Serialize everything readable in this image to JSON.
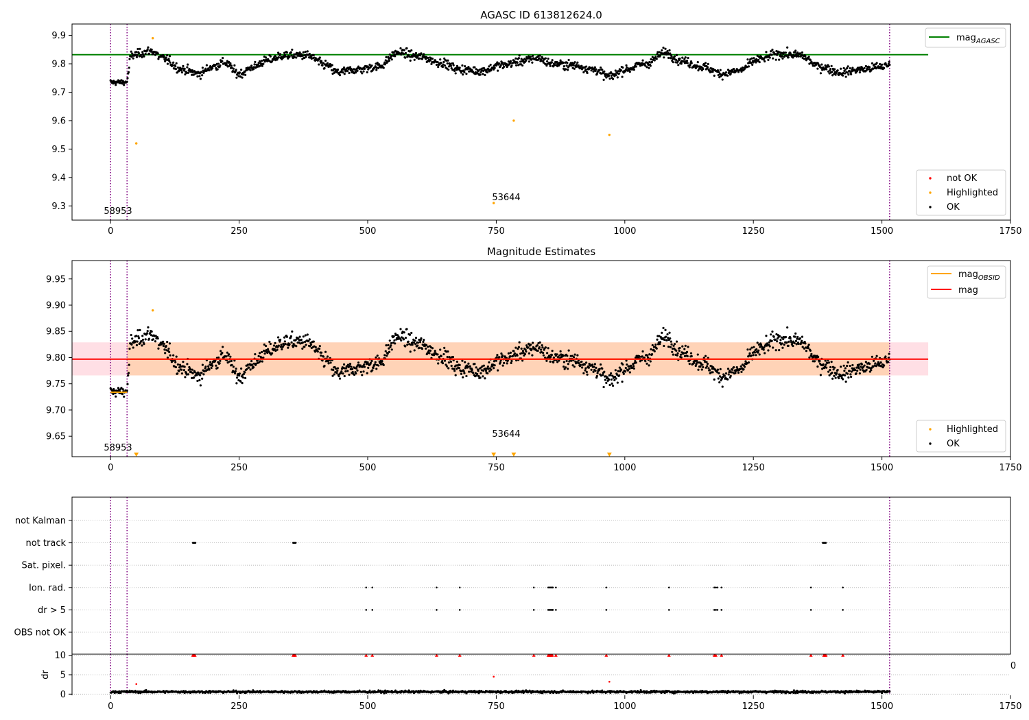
{
  "chart_data": [
    {
      "type": "scatter",
      "title": "AGASC ID 613812624.0",
      "xlim": [
        -75,
        1750
      ],
      "ylim": [
        9.25,
        9.94
      ],
      "x_ticks": [
        0,
        250,
        500,
        750,
        1000,
        1250,
        1500,
        1750
      ],
      "y_ticks": [
        9.3,
        9.4,
        9.5,
        9.6,
        9.7,
        9.8,
        9.9
      ],
      "grid": false,
      "reference_line": {
        "name": "mag",
        "name_sub": "AGASC",
        "value": 9.832,
        "x_range": [
          -75,
          1590
        ],
        "color": "#008000"
      },
      "vertical_lines": {
        "x": [
          0,
          32,
          1515
        ],
        "color": "#800080",
        "style": "dotted"
      },
      "annotations": [
        {
          "text": "58953",
          "x": 28,
          "y": 9.27
        },
        {
          "text": "53644",
          "x": 775,
          "y": 9.32
        }
      ],
      "highlighted_points": [
        {
          "x": 50,
          "y": 9.52
        },
        {
          "x": 82,
          "y": 9.89
        },
        {
          "x": 745,
          "y": 9.31
        },
        {
          "x": 784,
          "y": 9.6
        },
        {
          "x": 970,
          "y": 9.55
        }
      ],
      "legend_upper": {
        "placement": "top-right",
        "entries": [
          {
            "label": "mag",
            "sub": "AGASC",
            "color": "#008000"
          }
        ]
      },
      "legend_lower": {
        "placement": "bottom-right",
        "entries": [
          {
            "label": "not OK",
            "color": "#ff0000"
          },
          {
            "label": "Highlighted",
            "color": "#ffa500"
          },
          {
            "label": "OK",
            "color": "#000000"
          }
        ]
      }
    },
    {
      "type": "scatter",
      "title": "Magnitude Estimates",
      "xlim": [
        -75,
        1750
      ],
      "ylim": [
        9.611,
        9.985
      ],
      "x_ticks": [
        0,
        250,
        500,
        750,
        1000,
        1250,
        1500,
        1750
      ],
      "y_ticks": [
        9.65,
        9.7,
        9.75,
        9.8,
        9.85,
        9.9,
        9.95
      ],
      "grid": false,
      "mag_line": {
        "name": "mag",
        "value": 9.797,
        "x_range": [
          -75,
          1590
        ],
        "color": "#ff0000"
      },
      "mag_band": {
        "low": 9.766,
        "high": 9.829,
        "x_range": [
          -75,
          1590
        ],
        "color": "#ffc0cb"
      },
      "obsid_band": {
        "low": 9.766,
        "high": 9.829,
        "x_range": [
          32,
          1515
        ],
        "color": "#ffa500"
      },
      "obsid_segments": [
        {
          "x0": 0,
          "x1": 32,
          "value": 9.734
        },
        {
          "x0": 32,
          "x1": 1515,
          "value": 9.797
        }
      ],
      "vertical_lines": {
        "x": [
          0,
          32,
          1515
        ],
        "color": "#800080",
        "style": "dotted"
      },
      "annotations": [
        {
          "text": "58953",
          "x": 28,
          "y": 9.624
        },
        {
          "text": "53644",
          "x": 775,
          "y": 9.648
        }
      ],
      "highlighted_points": [
        {
          "x": 82,
          "y": 9.89
        }
      ],
      "highlighted_below_range_x": [
        50,
        745,
        784,
        970
      ],
      "legend_upper": {
        "placement": "top-right",
        "entries": [
          {
            "label": "mag",
            "sub": "OBSID",
            "color": "#ffa500"
          },
          {
            "label": "mag",
            "sub": "",
            "color": "#ff0000"
          }
        ]
      },
      "legend_lower": {
        "placement": "bottom-right",
        "entries": [
          {
            "label": "Highlighted",
            "color": "#ffa500"
          },
          {
            "label": "OK",
            "color": "#000000"
          }
        ]
      }
    },
    {
      "type": "scatter",
      "title": "",
      "xlim": [
        -75,
        1750
      ],
      "categories": [
        "not Kalman",
        "not track",
        "Sat. pixel.",
        "Ion. rad.",
        "dr > 5",
        "OBS not OK"
      ],
      "vertical_lines": {
        "x": [
          0,
          32,
          1515
        ],
        "color": "#800080",
        "style": "dotted"
      },
      "flags": {
        "not Kalman": [],
        "not track": [
          160,
          161,
          162,
          163,
          164,
          165,
          355,
          356,
          357,
          358,
          359,
          360,
          1385,
          1386,
          1387,
          1388,
          1389,
          1390,
          1391
        ],
        "Sat. pixel.": [],
        "Ion. rad.": [
          497,
          509,
          634,
          679,
          823,
          851,
          853,
          855,
          857,
          859,
          860,
          866,
          964,
          1086,
          1174,
          1177,
          1180,
          1188,
          1362,
          1424
        ],
        "dr > 5": [
          497,
          509,
          634,
          679,
          823,
          851,
          853,
          855,
          857,
          859,
          860,
          866,
          964,
          1086,
          1174,
          1177,
          1180,
          1188,
          1362,
          1424
        ],
        "OBS not OK": []
      },
      "edge_label": "0"
    },
    {
      "type": "scatter",
      "title": "",
      "ylabel": "dr",
      "xlim": [
        -75,
        1750
      ],
      "ylim": [
        -0.3,
        10.3
      ],
      "x_ticks": [
        0,
        250,
        500,
        750,
        1000,
        1250,
        1500,
        1750
      ],
      "y_ticks": [
        0,
        5,
        10
      ],
      "vertical_lines": {
        "x": [
          0,
          32,
          1515
        ],
        "color": "#800080",
        "style": "dotted"
      },
      "clipped_at_10_x": [
        160,
        162,
        164,
        355,
        357,
        359,
        497,
        509,
        634,
        679,
        823,
        851,
        853,
        855,
        857,
        859,
        866,
        964,
        1086,
        1174,
        1177,
        1188,
        1362,
        1387,
        1389,
        1391,
        1424
      ],
      "outliers": [
        {
          "x": 50,
          "y": 2.6
        },
        {
          "x": 745,
          "y": 4.5
        },
        {
          "x": 970,
          "y": 3.2
        }
      ]
    }
  ]
}
